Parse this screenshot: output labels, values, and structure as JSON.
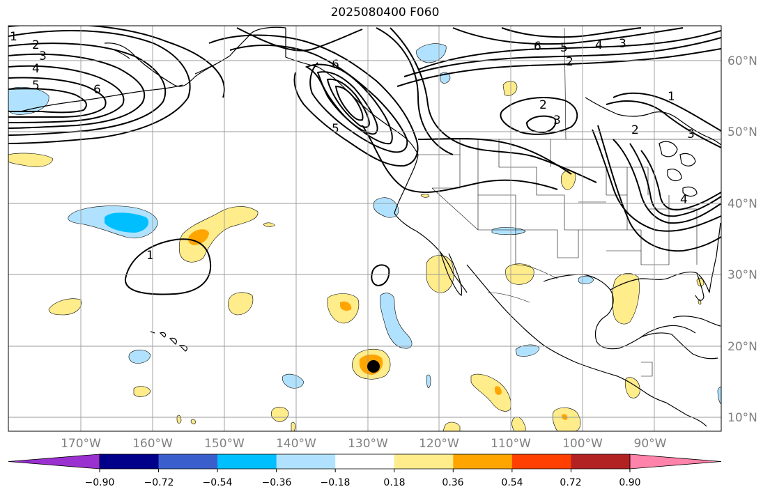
{
  "title": "2025080400 F060",
  "axes": {
    "lon_ticks": [
      "170°W",
      "160°W",
      "150°W",
      "140°W",
      "130°W",
      "120°W",
      "110°W",
      "100°W",
      "90°W"
    ],
    "lat_ticks": [
      "60°N",
      "50°N",
      "40°N",
      "30°N",
      "20°N",
      "10°N"
    ],
    "gridlines": true
  },
  "colorbar": {
    "labels": [
      "−0.90",
      "−0.72",
      "−0.54",
      "−0.36",
      "−0.18",
      "0.18",
      "0.36",
      "0.54",
      "0.72",
      "0.90"
    ],
    "colors": [
      "#9b30d0",
      "#00008b",
      "#3a5fcd",
      "#00bfff",
      "#b0e2ff",
      "#ffffff",
      "#ffec8b",
      "#ffa500",
      "#ff4000",
      "#b22222",
      "#ff83aa"
    ],
    "extend": "both"
  },
  "fill_colors": {
    "light_blue": "#b0e2ff",
    "cyan": "#00bfff",
    "light_yellow": "#ffec8b",
    "orange": "#ffa500"
  },
  "contour_labels": [
    "1",
    "2",
    "3",
    "4",
    "5",
    "6",
    "6",
    "5",
    "6",
    "5",
    "4",
    "3",
    "2",
    "2",
    "3",
    "1",
    "2",
    "3",
    "4",
    "1"
  ],
  "marker": "storm-center-dot"
}
